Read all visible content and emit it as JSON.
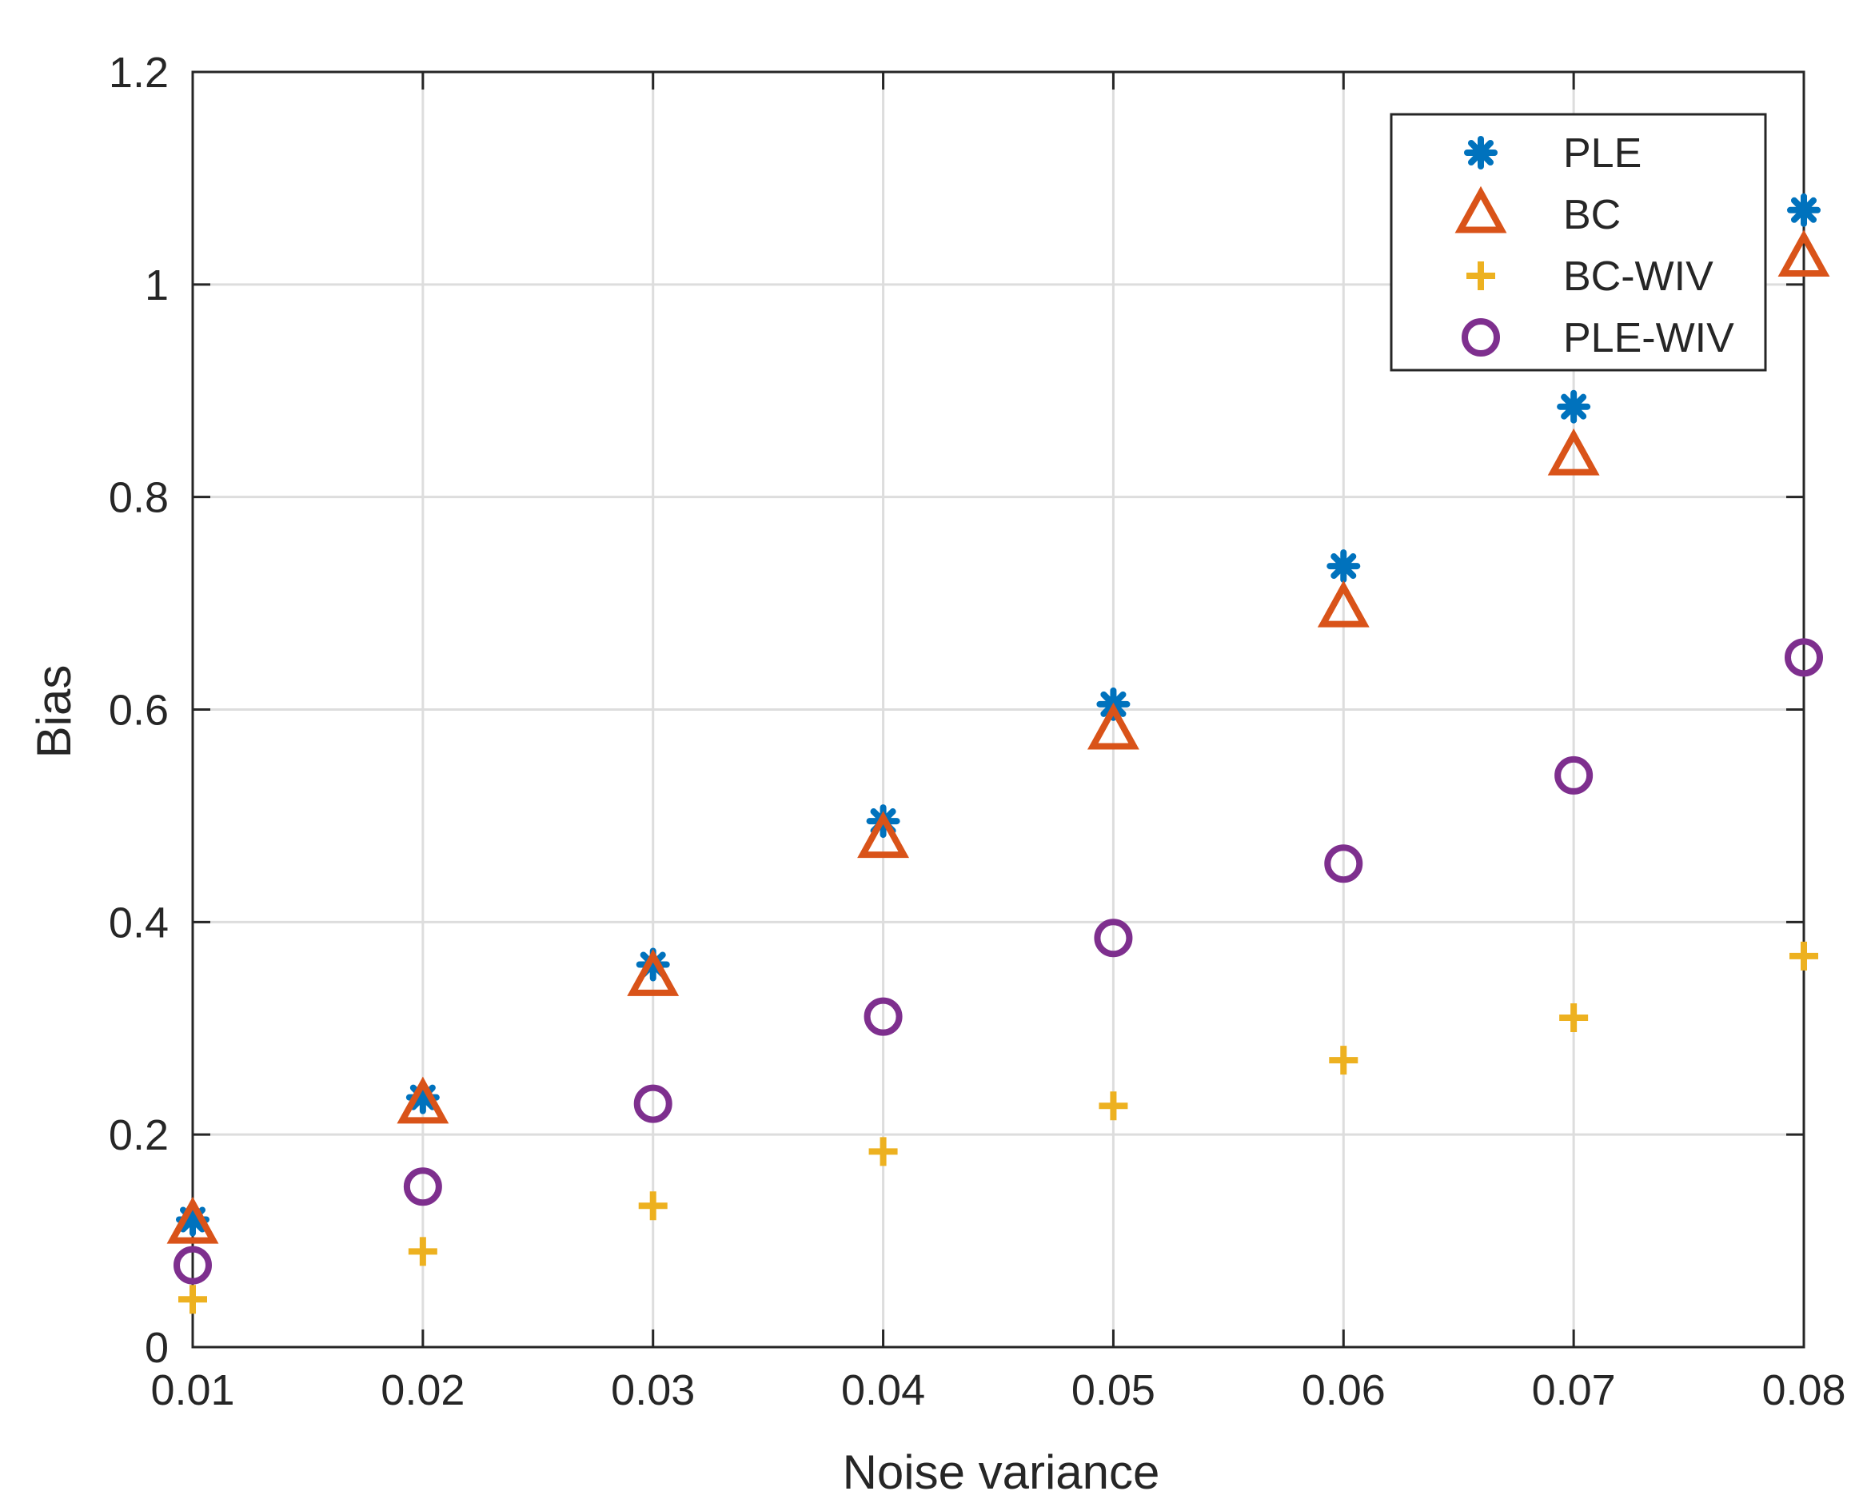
{
  "colors": {
    "ple": "#0072BD",
    "bc": "#D95319",
    "bc_wiv": "#EDB120",
    "ple_wiv": "#7E2F8E",
    "grid": "#DDDDDD",
    "axis": "#262626"
  },
  "chart_data": {
    "type": "scatter",
    "title": "",
    "xlabel": "Noise variance",
    "ylabel": "Bias",
    "xlim": [
      0.01,
      0.08
    ],
    "ylim": [
      0,
      1.2
    ],
    "grid": true,
    "legend_position": "top-right",
    "x": [
      0.01,
      0.02,
      0.03,
      0.04,
      0.05,
      0.06,
      0.07,
      0.08
    ],
    "x_ticks": [
      "0.01",
      "0.02",
      "0.03",
      "0.04",
      "0.05",
      "0.06",
      "0.07",
      "0.08"
    ],
    "y_ticks": [
      "0",
      "0.2",
      "0.4",
      "0.6",
      "0.8",
      "1",
      "1.2"
    ],
    "series": [
      {
        "name": "PLE",
        "marker": "asterisk",
        "values": [
          0.12,
          0.235,
          0.36,
          0.495,
          0.605,
          0.735,
          0.885,
          1.07
        ]
      },
      {
        "name": "BC",
        "marker": "triangle",
        "values": [
          0.115,
          0.228,
          0.348,
          0.478,
          0.58,
          0.695,
          0.838,
          1.025
        ]
      },
      {
        "name": "BC-WIV",
        "marker": "plus",
        "values": [
          0.045,
          0.09,
          0.133,
          0.184,
          0.227,
          0.27,
          0.31,
          0.368
        ]
      },
      {
        "name": "PLE-WIV",
        "marker": "circle",
        "values": [
          0.077,
          0.151,
          0.229,
          0.311,
          0.385,
          0.455,
          0.538,
          0.649
        ]
      }
    ]
  }
}
